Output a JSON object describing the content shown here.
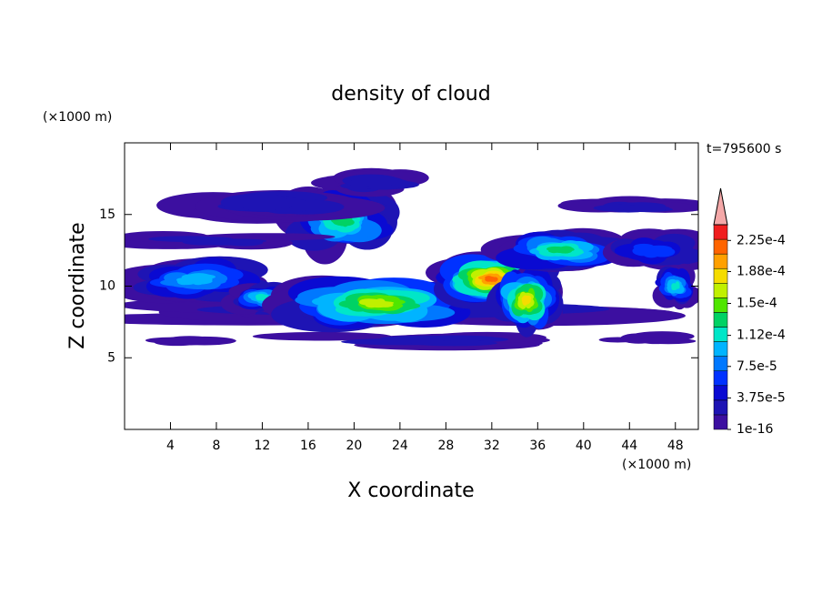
{
  "chart_data": {
    "type": "contour",
    "title": "density of cloud",
    "x_label": "X coordinate",
    "y_label": "Z coordinate",
    "x_unit": "(×1000 m)",
    "y_unit": "(×1000 m)",
    "time_label": "t=795600 s",
    "xlim": [
      0,
      50
    ],
    "ylim": [
      0,
      20
    ],
    "xticks": [
      4,
      8,
      12,
      16,
      20,
      24,
      28,
      32,
      36,
      40,
      44,
      48
    ],
    "yticks": [
      5,
      10,
      15
    ],
    "colorbar": {
      "clim": [
        1e-16,
        0.00024375
      ],
      "colors": [
        "#3c0fa0",
        "#1e14b4",
        "#0a0ad2",
        "#0032ff",
        "#0078ff",
        "#00b4ff",
        "#00e6c8",
        "#00d264",
        "#50e600",
        "#c0f000",
        "#f5dc00",
        "#ffa000",
        "#ff6400",
        "#f01e1e"
      ],
      "extend_color": "#f4a8a8",
      "ticks": [
        {
          "value": 1e-16,
          "label": "1e-16"
        },
        {
          "value": 3.75e-05,
          "label": "3.75e-5"
        },
        {
          "value": 7.5e-05,
          "label": "7.5e-5"
        },
        {
          "value": 0.000112,
          "label": "1.12e-4"
        },
        {
          "value": 0.00015,
          "label": "1.5e-4"
        },
        {
          "value": 0.000188,
          "label": "1.88e-4"
        },
        {
          "value": 0.000225,
          "label": "2.25e-4"
        }
      ]
    }
  }
}
